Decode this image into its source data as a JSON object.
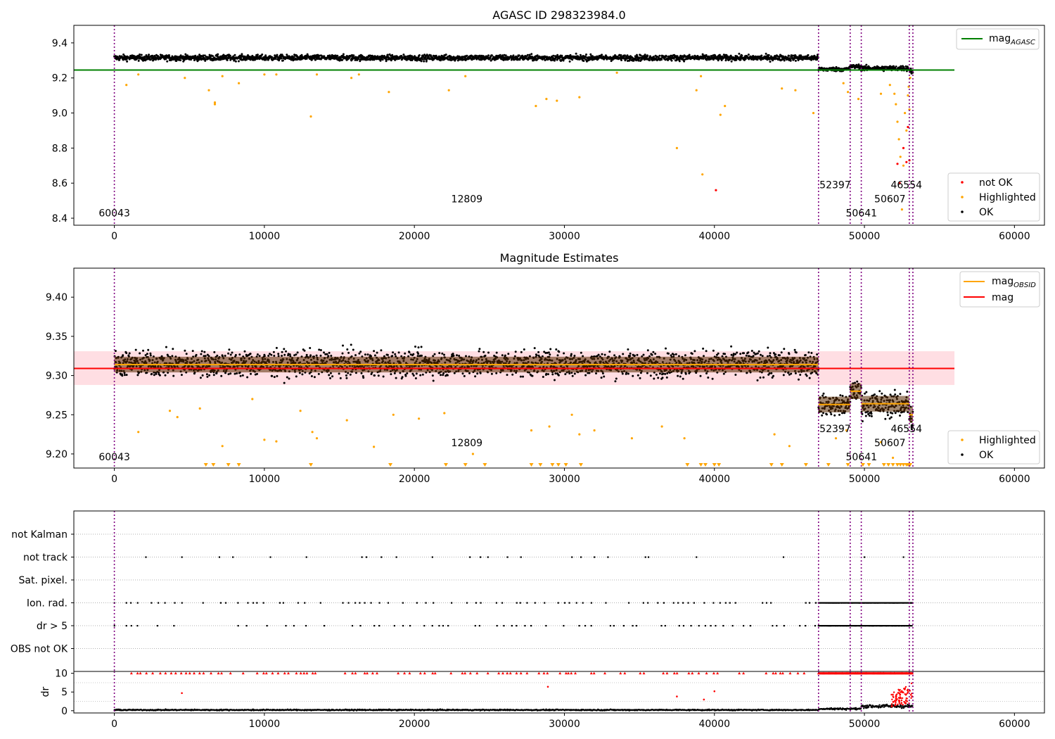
{
  "chart_data": [
    {
      "type": "scatter",
      "title": "AGASC ID 298323984.0",
      "xlim": [
        -2700,
        62000
      ],
      "ylim": [
        8.36,
        9.5
      ],
      "xticks": [
        0,
        10000,
        20000,
        30000,
        40000,
        50000,
        60000
      ],
      "yticks": [
        8.4,
        8.6,
        8.8,
        9.0,
        9.2,
        9.4
      ],
      "xtick_labels": [
        "0",
        "10000",
        "20000",
        "30000",
        "40000",
        "50000",
        "60000"
      ],
      "ytick_labels": [
        "8.4",
        "8.6",
        "8.8",
        "9.0",
        "9.2",
        "9.4"
      ],
      "reference_line": {
        "name": "mag",
        "subscript": "AGASC",
        "y": 9.245,
        "x": [
          -2700,
          56000
        ],
        "color": "#008000"
      },
      "obsid_boundaries": [
        0,
        46940,
        49050,
        49790,
        52990,
        53230
      ],
      "annotations": [
        {
          "text": "60043",
          "x": 0,
          "y": 8.41
        },
        {
          "text": "12809",
          "x": 23500,
          "y": 8.49
        },
        {
          "text": "52397",
          "x": 48050,
          "y": 8.57
        },
        {
          "text": "50641",
          "x": 49800,
          "y": 8.41
        },
        {
          "text": "50607",
          "x": 51700,
          "y": 8.49
        },
        {
          "text": "46554",
          "x": 52800,
          "y": 8.57
        }
      ],
      "legend_position": "top-right and bottom-right",
      "legend": {
        "line": {
          "name": "mag",
          "subscript": "AGASC",
          "color": "#008000"
        },
        "points": [
          {
            "name": "not OK",
            "color": "#ff0000"
          },
          {
            "name": "Highlighted",
            "color": "#ffa500"
          },
          {
            "name": "OK",
            "color": "#000000"
          }
        ]
      },
      "series": [
        {
          "name": "OK",
          "band": [
            {
              "x": [
                0,
                46940
              ],
              "center": 9.315,
              "spread": 0.028
            },
            {
              "x": [
                46940,
                49050
              ],
              "center": 9.25,
              "spread": 0.02
            },
            {
              "x": [
                49050,
                49790
              ],
              "center": 9.265,
              "spread": 0.02
            },
            {
              "x": [
                49790,
                52990
              ],
              "center": 9.255,
              "spread": 0.025
            },
            {
              "x": [
                52990,
                53230
              ],
              "center": 9.24,
              "spread": 0.03
            }
          ]
        },
        {
          "name": "Highlighted",
          "points": [
            [
              800,
              9.16
            ],
            [
              1600,
              9.22
            ],
            [
              4700,
              9.2
            ],
            [
              6300,
              9.13
            ],
            [
              6700,
              9.06
            ],
            [
              6700,
              9.05
            ],
            [
              7200,
              9.21
            ],
            [
              8300,
              9.17
            ],
            [
              10000,
              9.22
            ],
            [
              10800,
              9.22
            ],
            [
              13100,
              8.98
            ],
            [
              13500,
              9.22
            ],
            [
              15800,
              9.2
            ],
            [
              16300,
              9.22
            ],
            [
              18300,
              9.12
            ],
            [
              22300,
              9.13
            ],
            [
              23400,
              9.21
            ],
            [
              28100,
              9.04
            ],
            [
              28800,
              9.08
            ],
            [
              29500,
              9.07
            ],
            [
              31000,
              9.09
            ],
            [
              33500,
              9.23
            ],
            [
              37500,
              8.8
            ],
            [
              38800,
              9.13
            ],
            [
              39100,
              9.21
            ],
            [
              39200,
              8.65
            ],
            [
              40400,
              8.99
            ],
            [
              40700,
              9.04
            ],
            [
              44500,
              9.14
            ],
            [
              45400,
              9.13
            ],
            [
              46600,
              9.0
            ],
            [
              48600,
              9.17
            ],
            [
              48900,
              9.12
            ],
            [
              49600,
              9.08
            ],
            [
              51100,
              9.11
            ],
            [
              51700,
              9.16
            ],
            [
              52000,
              9.11
            ],
            [
              52100,
              9.05
            ],
            [
              52200,
              8.95
            ],
            [
              52300,
              8.85
            ],
            [
              52400,
              8.75
            ],
            [
              52500,
              8.45
            ],
            [
              52600,
              8.7
            ],
            [
              52700,
              9.0
            ],
            [
              52800,
              8.9
            ],
            [
              52900,
              9.1
            ],
            [
              52950,
              9.15
            ],
            [
              53000,
              9.02
            ],
            [
              53050,
              9.2
            ]
          ]
        },
        {
          "name": "not OK",
          "points": [
            [
              40100,
              8.56
            ],
            [
              52200,
              8.71
            ],
            [
              52350,
              8.6
            ],
            [
              52800,
              8.72
            ],
            [
              52900,
              8.92
            ],
            [
              53000,
              8.73
            ],
            [
              52600,
              8.8
            ]
          ]
        }
      ]
    },
    {
      "type": "scatter",
      "title": "Magnitude Estimates",
      "xlim": [
        -2700,
        62000
      ],
      "ylim": [
        9.182,
        9.437
      ],
      "xticks": [
        0,
        10000,
        20000,
        30000,
        40000,
        50000,
        60000
      ],
      "yticks": [
        9.2,
        9.25,
        9.3,
        9.35,
        9.4
      ],
      "xtick_labels": [
        "0",
        "10000",
        "20000",
        "30000",
        "40000",
        "50000",
        "60000"
      ],
      "ytick_labels": [
        "9.20",
        "9.25",
        "9.30",
        "9.35",
        "9.40"
      ],
      "mean_line": {
        "name": "mag",
        "y": 9.309,
        "band": [
          9.288,
          9.331
        ],
        "x": [
          -2700,
          56000
        ],
        "color": "#ff0000"
      },
      "obsid_means": [
        {
          "x": [
            0,
            46940
          ],
          "y": 9.314
        },
        {
          "x": [
            46940,
            49050
          ],
          "y": 9.263
        },
        {
          "x": [
            49050,
            49790
          ],
          "y": 9.28
        },
        {
          "x": [
            49790,
            52990
          ],
          "y": 9.264
        },
        {
          "x": [
            52990,
            53230
          ],
          "y": 9.25
        }
      ],
      "obsid_boundaries": [
        0,
        46940,
        49050,
        49790,
        52990,
        53230
      ],
      "annotations": [
        {
          "text": "60043",
          "x": 0,
          "y": 9.192
        },
        {
          "text": "12809",
          "x": 23500,
          "y": 9.21
        },
        {
          "text": "52397",
          "x": 48050,
          "y": 9.228
        },
        {
          "text": "50641",
          "x": 49800,
          "y": 9.192
        },
        {
          "text": "50607",
          "x": 51700,
          "y": 9.21
        },
        {
          "text": "46554",
          "x": 52800,
          "y": 9.228
        }
      ],
      "legend_position": "top-right and bottom-right",
      "legend": {
        "line": [
          {
            "name": "mag",
            "subscript": "OBSID",
            "color": "#ffa500"
          },
          {
            "name": "mag",
            "color": "#ff0000"
          }
        ],
        "points": [
          {
            "name": "Highlighted",
            "color": "#ffa500"
          },
          {
            "name": "OK",
            "color": "#000000"
          }
        ]
      },
      "series": [
        {
          "name": "OK",
          "band": [
            {
              "x": [
                0,
                46940
              ],
              "center": 9.315,
              "spread": 0.028
            },
            {
              "x": [
                46940,
                49050
              ],
              "center": 9.262,
              "spread": 0.022
            },
            {
              "x": [
                49050,
                49790
              ],
              "center": 9.28,
              "spread": 0.02
            },
            {
              "x": [
                49790,
                52990
              ],
              "center": 9.263,
              "spread": 0.028
            },
            {
              "x": [
                52990,
                53230
              ],
              "center": 9.245,
              "spread": 0.03
            }
          ]
        },
        {
          "name": "Highlighted",
          "points": [
            [
              1600,
              9.228
            ],
            [
              3700,
              9.255
            ],
            [
              4200,
              9.247
            ],
            [
              5700,
              9.258
            ],
            [
              7200,
              9.21
            ],
            [
              9200,
              9.27
            ],
            [
              10000,
              9.218
            ],
            [
              10800,
              9.216
            ],
            [
              12400,
              9.255
            ],
            [
              13200,
              9.228
            ],
            [
              13500,
              9.22
            ],
            [
              15500,
              9.243
            ],
            [
              17300,
              9.209
            ],
            [
              18600,
              9.25
            ],
            [
              20300,
              9.245
            ],
            [
              22000,
              9.252
            ],
            [
              23900,
              9.2
            ],
            [
              27800,
              9.23
            ],
            [
              29000,
              9.235
            ],
            [
              30500,
              9.25
            ],
            [
              31000,
              9.225
            ],
            [
              32000,
              9.23
            ],
            [
              34500,
              9.22
            ],
            [
              36500,
              9.235
            ],
            [
              38000,
              9.22
            ],
            [
              44000,
              9.225
            ],
            [
              45000,
              9.21
            ],
            [
              48100,
              9.22
            ],
            [
              48800,
              9.23
            ],
            [
              51100,
              9.215
            ],
            [
              51900,
              9.195
            ]
          ]
        }
      ],
      "below_range_markers_x": [
        6100,
        6600,
        7600,
        8300,
        13100,
        18400,
        22100,
        23400,
        24700,
        27800,
        28400,
        29200,
        29600,
        30100,
        31100,
        38200,
        39100,
        39400,
        40000,
        40300,
        43800,
        44500,
        46100,
        47600,
        48900,
        49900,
        50300,
        51300,
        51600,
        51900,
        52200,
        52400,
        52600,
        52800,
        52900,
        53050
      ]
    },
    {
      "type": "scatter",
      "title": "",
      "xlim": [
        -2700,
        62000
      ],
      "xticks": [
        0,
        10000,
        20000,
        30000,
        40000,
        50000,
        60000
      ],
      "xtick_labels": [
        "0",
        "10000",
        "20000",
        "30000",
        "40000",
        "50000",
        "60000"
      ],
      "categories": [
        "not Kalman",
        "not track",
        "Sat. pixel.",
        "Ion. rad.",
        "dr > 5",
        "OBS not OK"
      ],
      "flags": {
        "not track": [
          2100,
          4500,
          7000,
          7900,
          10400,
          12800,
          16500,
          16800,
          17800,
          18800,
          21200,
          23700,
          24400,
          24900,
          26200,
          27100,
          30500,
          31100,
          32000,
          32900,
          35400,
          35600,
          38800,
          44600,
          50000,
          52600
        ],
        "Ion. rad.": {
          "dense_ranges": [
            [
              800,
              46900
            ],
            [
              46940,
              53230
            ]
          ],
          "gaps": [
            [
              1700,
              2300
            ],
            [
              14100,
              15200
            ],
            [
              44800,
              45300
            ]
          ]
        },
        "dr > 5": {
          "dense_ranges": [
            [
              800,
              46900
            ],
            [
              46940,
              53230
            ]
          ],
          "gaps": [
            [
              1700,
              2300
            ],
            [
              14100,
              15200
            ],
            [
              44800,
              45300
            ]
          ]
        }
      },
      "obsid_boundaries": [
        0,
        46940,
        49050,
        49790,
        52990,
        53230
      ]
    },
    {
      "type": "scatter",
      "title": "",
      "ylabel": "dr",
      "xlim": [
        -2700,
        62000
      ],
      "ylim": [
        -0.6,
        10.5
      ],
      "yticks": [
        0,
        5,
        10
      ],
      "ytick_labels": [
        "0",
        "5",
        "10"
      ],
      "xticks": [
        0,
        10000,
        20000,
        30000,
        40000,
        50000,
        60000
      ],
      "xtick_labels": [
        "0",
        "10000",
        "20000",
        "30000",
        "40000",
        "50000",
        "60000"
      ],
      "capped_at": 10,
      "obsid_boundaries": [
        0,
        46940,
        49050,
        49790,
        52990,
        53230
      ],
      "series": [
        {
          "name": "OK",
          "band": [
            {
              "x": [
                0,
                46940
              ],
              "center": 0.2,
              "spread": 0.25
            },
            {
              "x": [
                46940,
                49790
              ],
              "center": 0.5,
              "spread": 0.4
            },
            {
              "x": [
                49790,
                53230
              ],
              "center": 1.2,
              "spread": 0.8
            }
          ]
        },
        {
          "name": "not OK",
          "points": [
            [
              4500,
              4.7
            ],
            [
              28900,
              6.4
            ],
            [
              37500,
              3.8
            ],
            [
              39300,
              3
            ],
            [
              40000,
              5.2
            ]
          ],
          "capped_range": [
            800,
            53230
          ]
        }
      ]
    }
  ]
}
